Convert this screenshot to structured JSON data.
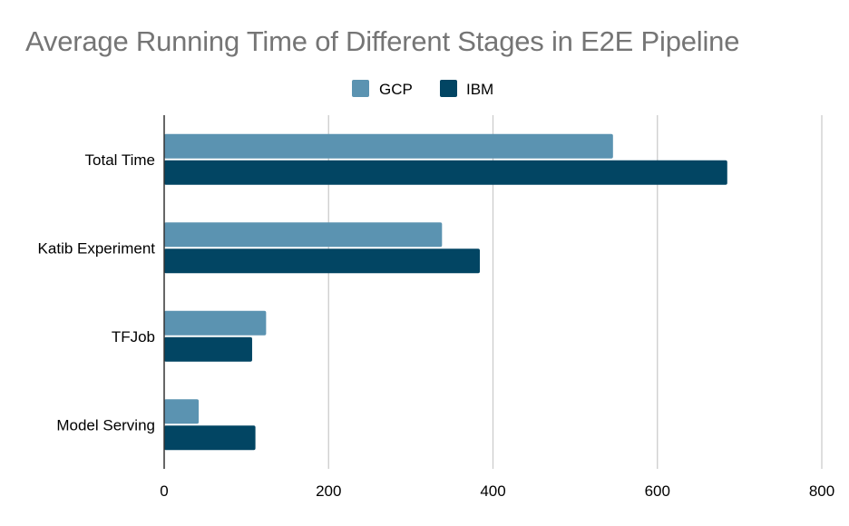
{
  "chart_data": {
    "type": "bar",
    "orientation": "horizontal",
    "title": "Average Running Time of Different Stages in E2E Pipeline",
    "categories": [
      "Total Time",
      "Katib Experiment",
      "TFJob",
      "Model Serving"
    ],
    "series": [
      {
        "name": "GCP",
        "color": "#5b93b1",
        "values": [
          546,
          338,
          124,
          42
        ]
      },
      {
        "name": "IBM",
        "color": "#024563",
        "values": [
          685,
          384,
          107,
          111
        ]
      }
    ],
    "x_ticks": [
      0,
      200,
      400,
      600,
      800
    ],
    "xlim": [
      0,
      800
    ],
    "xlabel": "",
    "ylabel": "",
    "grid": "vertical",
    "legend_position": "top-center"
  }
}
